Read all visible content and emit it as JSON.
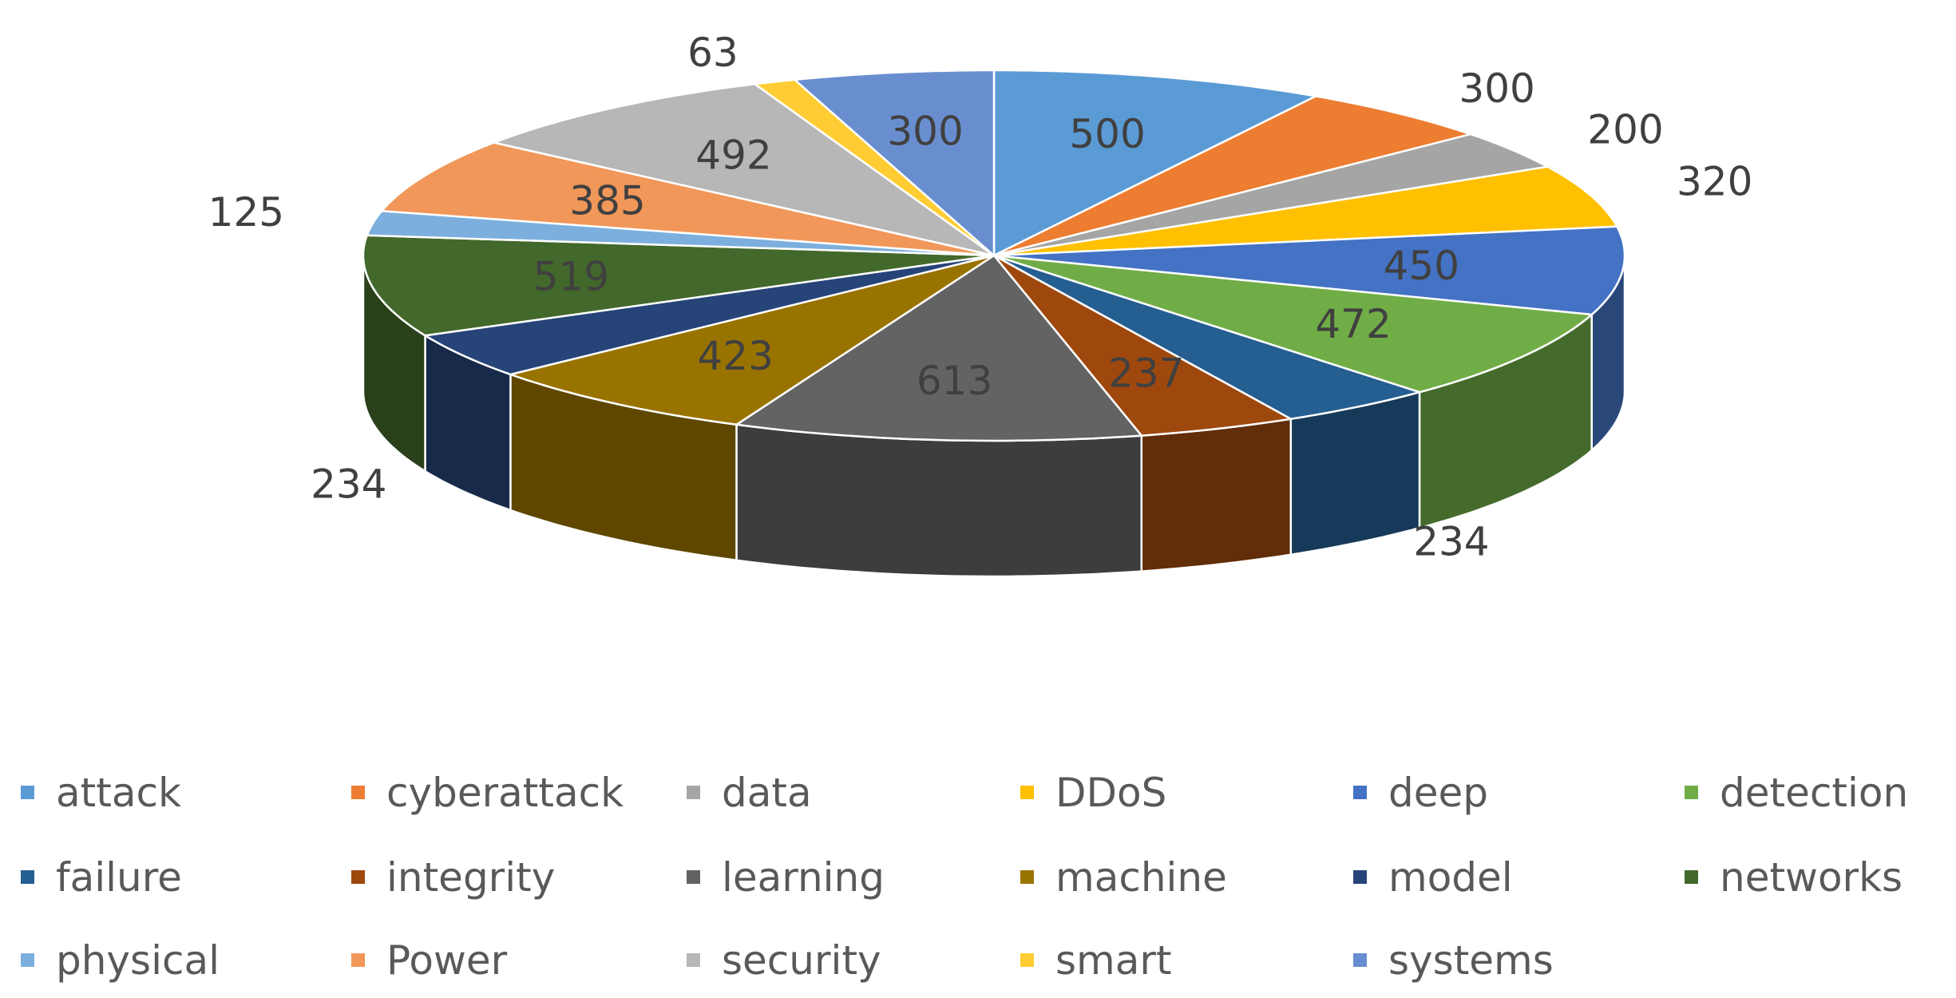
{
  "chart_data": {
    "type": "pie",
    "style": "3d-pie",
    "categories": [
      "attack",
      "cyberattack",
      "data",
      "DDoS",
      "deep",
      "detection",
      "failure",
      "integrity",
      "learning",
      "machine",
      "model",
      "networks",
      "physical",
      "Power",
      "security",
      "smart",
      "systems"
    ],
    "values": [
      500,
      300,
      200,
      320,
      450,
      472,
      234,
      237,
      613,
      423,
      234,
      519,
      125,
      385,
      492,
      63,
      300
    ],
    "colors": [
      "#5B9BD5",
      "#ED7D31",
      "#A5A5A5",
      "#FFC000",
      "#4472C4",
      "#70AD47",
      "#255E91",
      "#9E480E",
      "#636363",
      "#997300",
      "#264478",
      "#43682B",
      "#7CAFDD",
      "#F1975A",
      "#B7B7B7",
      "#FFCD33",
      "#698ED0"
    ],
    "label_placement": [
      "inside",
      "outside",
      "outside",
      "outside",
      "inside",
      "inside",
      "outside",
      "inside",
      "inside",
      "inside",
      "outside",
      "inside",
      "outside",
      "inside",
      "inside",
      "outside",
      "inside"
    ],
    "legend": {
      "position": "bottom",
      "columns": 6
    }
  }
}
